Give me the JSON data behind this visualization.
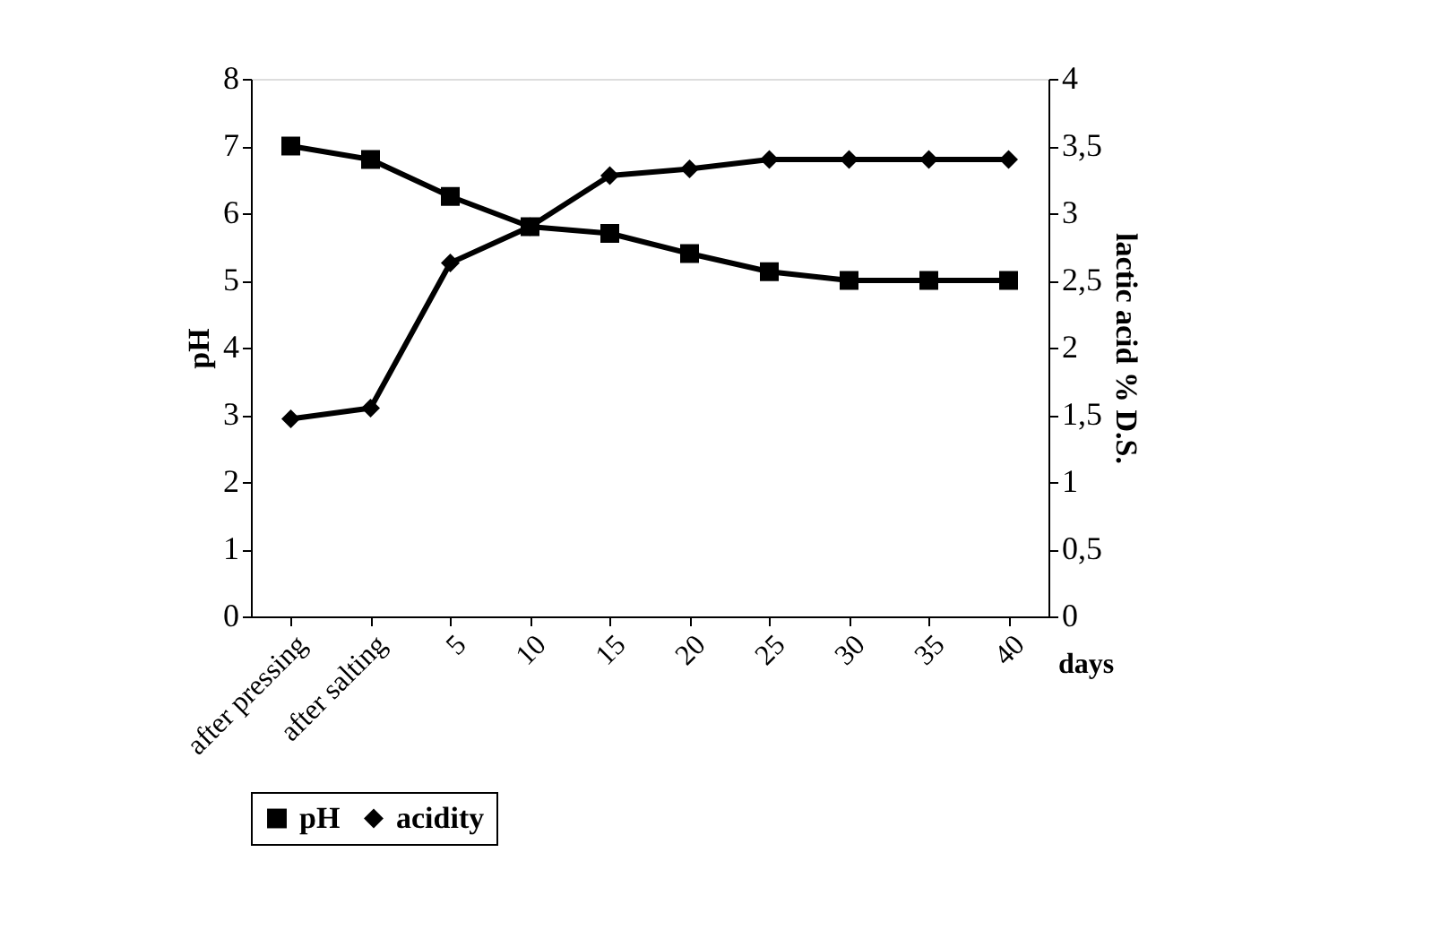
{
  "chart_data": {
    "type": "line",
    "xlabel": "days",
    "ylabel": "pH",
    "y2label": "lactic acid % D.S.",
    "categories": [
      "after pressing",
      "after salting",
      "5",
      "10",
      "15",
      "20",
      "25",
      "30",
      "35",
      "40"
    ],
    "series": [
      {
        "name": "pH",
        "color": "#000000",
        "marker": "square",
        "values": [
          7.0,
          6.8,
          6.25,
          5.8,
          5.7,
          5.4,
          5.13,
          5.0,
          5.0,
          5.0
        ]
      },
      {
        "name": "acidity",
        "color": "#000000",
        "marker": "diamond",
        "axis": "y2",
        "values": [
          1.47,
          1.55,
          2.63,
          2.9,
          3.28,
          3.33,
          3.4,
          3.4,
          3.4,
          3.4
        ]
      }
    ],
    "ylim": [
      0,
      8
    ],
    "yticks": [
      0,
      1,
      2,
      3,
      4,
      5,
      6,
      7,
      8
    ],
    "y2lim": [
      0,
      4
    ],
    "y2ticks": [
      0,
      {
        "value": 0.5,
        "label": "0,5"
      },
      1,
      {
        "value": 1.5,
        "label": "1,5"
      },
      2,
      {
        "value": 2.5,
        "label": "2,5"
      },
      3,
      {
        "value": 3.5,
        "label": "3,5"
      },
      4
    ],
    "grid": false,
    "legend": "bottom",
    "line_style": "solid"
  }
}
